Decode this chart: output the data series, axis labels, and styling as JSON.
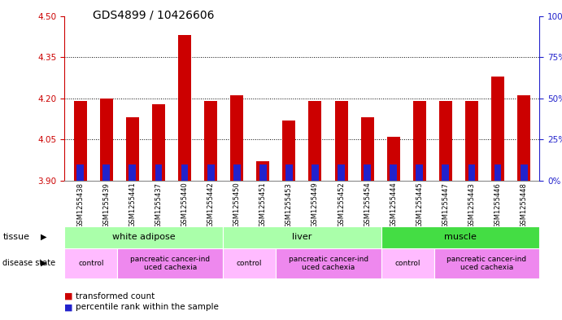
{
  "title": "GDS4899 / 10426606",
  "samples": [
    "GSM1255438",
    "GSM1255439",
    "GSM1255441",
    "GSM1255437",
    "GSM1255440",
    "GSM1255442",
    "GSM1255450",
    "GSM1255451",
    "GSM1255453",
    "GSM1255449",
    "GSM1255452",
    "GSM1255454",
    "GSM1255444",
    "GSM1255445",
    "GSM1255447",
    "GSM1255443",
    "GSM1255446",
    "GSM1255448"
  ],
  "red_values": [
    4.19,
    4.2,
    4.13,
    4.18,
    4.43,
    4.19,
    4.21,
    3.97,
    4.12,
    4.19,
    4.19,
    4.13,
    4.06,
    4.19,
    4.19,
    4.19,
    4.28,
    4.21
  ],
  "blue_percentile": [
    10,
    10,
    10,
    10,
    10,
    10,
    10,
    10,
    10,
    10,
    10,
    10,
    10,
    10,
    10,
    10,
    10,
    10
  ],
  "ylim_left": [
    3.9,
    4.5
  ],
  "ylim_right": [
    0,
    100
  ],
  "yticks_left": [
    3.9,
    4.05,
    4.2,
    4.35,
    4.5
  ],
  "yticks_right": [
    0,
    25,
    50,
    75,
    100
  ],
  "base": 3.9,
  "bar_color_red": "#cc0000",
  "bar_color_blue": "#2222cc",
  "bar_width": 0.5,
  "left_axis_color": "#cc0000",
  "right_axis_color": "#2222cc",
  "tissue_groups": [
    {
      "label": "white adipose",
      "start": 0,
      "end": 6,
      "color": "#aaffaa"
    },
    {
      "label": "liver",
      "start": 6,
      "end": 12,
      "color": "#aaffaa"
    },
    {
      "label": "muscle",
      "start": 12,
      "end": 18,
      "color": "#44dd44"
    }
  ],
  "disease_groups": [
    {
      "label": "control",
      "start": 0,
      "end": 2,
      "color": "#ffbbff"
    },
    {
      "label": "pancreatic cancer-ind\nuced cachexia",
      "start": 2,
      "end": 6,
      "color": "#ee88ee"
    },
    {
      "label": "control",
      "start": 6,
      "end": 8,
      "color": "#ffbbff"
    },
    {
      "label": "pancreatic cancer-ind\nuced cachexia",
      "start": 8,
      "end": 12,
      "color": "#ee88ee"
    },
    {
      "label": "control",
      "start": 12,
      "end": 14,
      "color": "#ffbbff"
    },
    {
      "label": "pancreatic cancer-ind\nuced cachexia",
      "start": 14,
      "end": 18,
      "color": "#ee88ee"
    }
  ],
  "title_fontsize": 10,
  "tick_fontsize": 7.5,
  "label_fontsize": 8,
  "sample_fontsize": 6
}
